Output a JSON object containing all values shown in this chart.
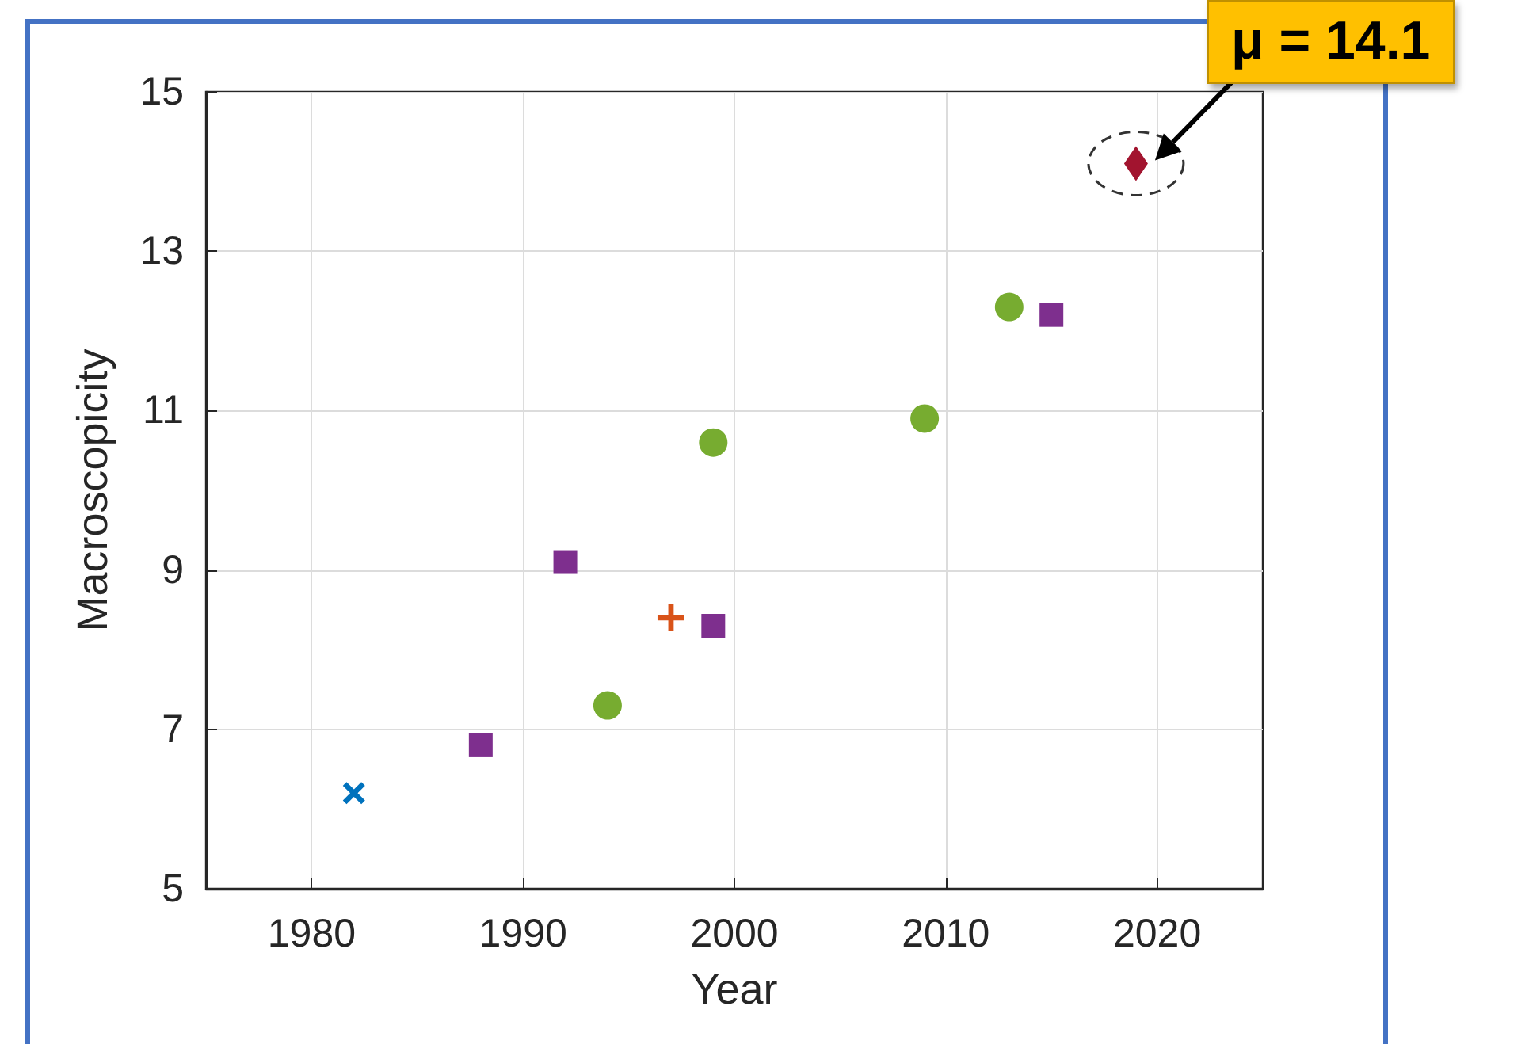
{
  "chart_data": {
    "type": "scatter",
    "xlabel": "Year",
    "ylabel": "Macroscopicity",
    "xlim": [
      1975,
      2025
    ],
    "xticks": [
      1980,
      1990,
      2000,
      2010,
      2020
    ],
    "ylim": [
      5,
      15
    ],
    "yticks": [
      5,
      7,
      9,
      11,
      13,
      15
    ],
    "grid": true,
    "series": [
      {
        "color": "#0072bd",
        "marker": "x",
        "x": [
          1982
        ],
        "values": [
          6.2
        ]
      },
      {
        "color": "#7e2f8e",
        "marker": "square",
        "x": [
          1988,
          1992,
          1999,
          2015
        ],
        "values": [
          6.8,
          9.1,
          8.3,
          12.2
        ]
      },
      {
        "color": "#77ac30",
        "marker": "circle",
        "x": [
          1994,
          1999,
          2009,
          2013
        ],
        "values": [
          7.3,
          10.6,
          10.9,
          12.3
        ]
      },
      {
        "color": "#d95319",
        "marker": "cross",
        "x": [
          1997
        ],
        "values": [
          8.4
        ]
      },
      {
        "color": "#a2142f",
        "marker": "diamond",
        "x": [
          2019
        ],
        "values": [
          14.1
        ]
      }
    ],
    "annotations": [
      {
        "text": "μ = 14.1",
        "x": 2019,
        "y": 14.1
      }
    ]
  }
}
